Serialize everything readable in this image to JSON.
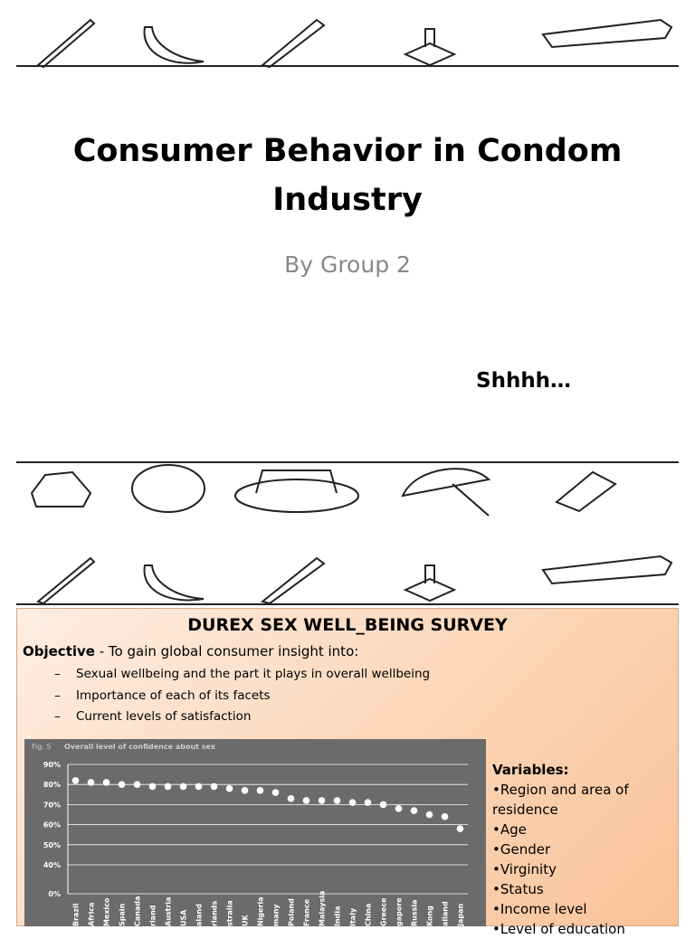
{
  "slides": [
    {
      "title": "Consumer Behavior in Condom Industry",
      "subtitle": "By Group 2",
      "note": "Shhhh…"
    },
    {
      "heading": "DUREX SEX WELL_BEING SURVEY",
      "objective_label": "Objective",
      "objective_text": " - To gain global consumer insight into:",
      "bullets": [
        "Sexual wellbeing and the part it plays in overall wellbeing",
        "Importance of each of its facets",
        "Current levels of satisfaction"
      ],
      "variables_label": "Variables:",
      "variables": [
        "•Region and area of residence",
        "•Age",
        "•Gender",
        "•Virginity",
        "•Status",
        "•Income level",
        "•Level of education"
      ],
      "chart": {
        "type": "scatter",
        "fig_label": "Fig. 5",
        "title": "Overall level of confidence about sex",
        "categories": [
          "Brazil",
          "Africa",
          "Mexico",
          "Spain",
          "Canada",
          "rland",
          "Austria",
          "USA",
          "aland",
          "rlands",
          "stralia",
          "UK",
          "Nigeria",
          "many",
          "Poland",
          "France",
          "Malaysia",
          "India",
          "Italy",
          "China",
          "Greece",
          "gapore",
          "Russia",
          "Kong",
          "ailand",
          "Japan"
        ],
        "values": [
          82,
          81,
          81,
          80,
          80,
          79,
          79,
          79,
          79,
          79,
          78,
          77,
          77,
          76,
          73,
          72,
          72,
          72,
          71,
          71,
          70,
          68,
          67,
          65,
          64,
          58
        ],
        "color": "#ffffff",
        "ylim": [
          0,
          90
        ],
        "axis_break": [
          0,
          40
        ],
        "yticks": [
          {
            "value": 0,
            "label": "0%"
          },
          {
            "value": 40,
            "label": "40%"
          },
          {
            "value": 50,
            "label": "50%"
          },
          {
            "value": 60,
            "label": "60%"
          },
          {
            "value": 70,
            "label": "70%"
          },
          {
            "value": 80,
            "label": "80%"
          },
          {
            "value": 90,
            "label": "90%"
          }
        ],
        "grid": true
      }
    }
  ]
}
